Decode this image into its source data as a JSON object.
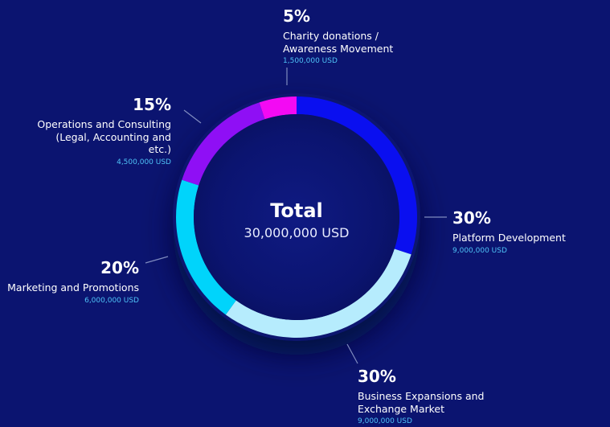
{
  "chart_data": {
    "type": "pie",
    "donut": true,
    "total": {
      "label": "Total",
      "value": "30,000,000 USD"
    },
    "slices": [
      {
        "percent_label": "30%",
        "value": 30,
        "label": "Platform Development",
        "amount": "9,000,000 USD",
        "color": "#0a0ff0"
      },
      {
        "percent_label": "30%",
        "value": 30,
        "label": "Business Expansions and\nExchange Market",
        "amount": "9,000,000 USD",
        "color": "#b6ecfd"
      },
      {
        "percent_label": "20%",
        "value": 20,
        "label": "Marketing and Promotions",
        "amount": "6,000,000 USD",
        "color": "#00d4fb"
      },
      {
        "percent_label": "15%",
        "value": 15,
        "label": "Operations and Consulting\n(Legal, Accounting and etc.)",
        "amount": "4,500,000 USD",
        "color": "#8f0ff5"
      },
      {
        "percent_label": "5%",
        "value": 5,
        "label": "Charity donations /\nAwareness Movement",
        "amount": "1,500,000 USD",
        "color": "#f30af3"
      }
    ]
  }
}
